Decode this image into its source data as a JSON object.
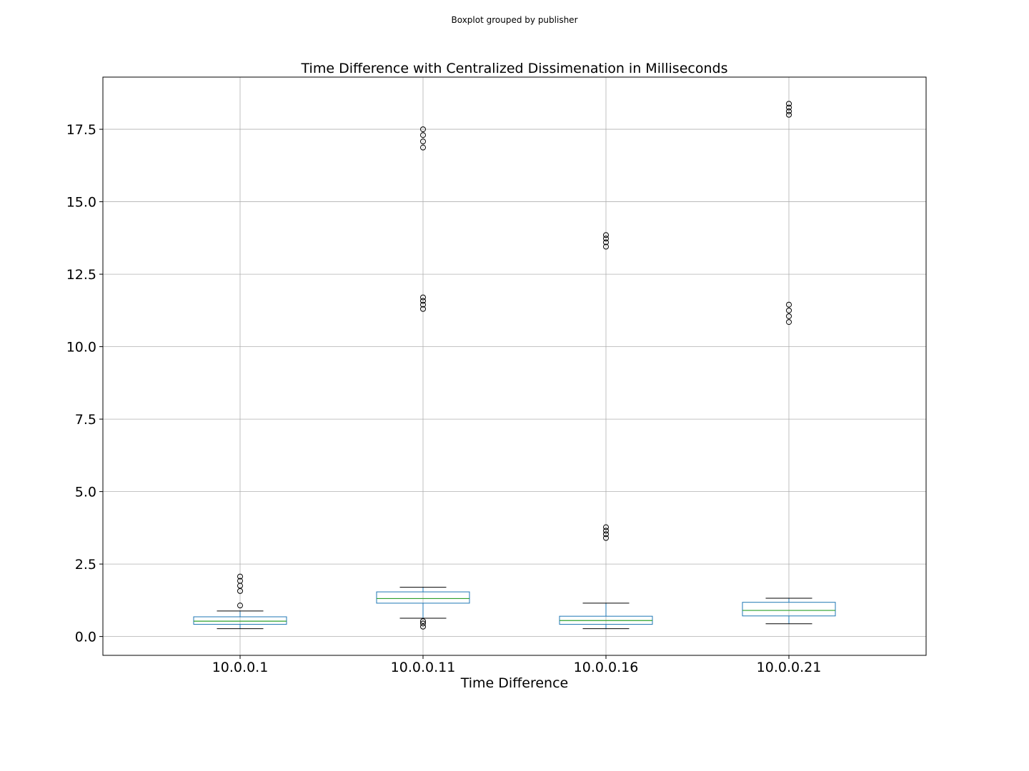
{
  "suptitle": "Boxplot grouped by publisher",
  "chart_data": {
    "type": "boxplot",
    "title": "Time Difference with Centralized Dissimenation in Milliseconds",
    "xlabel": "Time Difference",
    "ylabel": "",
    "ylim": [
      -0.65,
      19.3
    ],
    "yticks": [
      0.0,
      2.5,
      5.0,
      7.5,
      10.0,
      12.5,
      15.0,
      17.5
    ],
    "ytick_labels": [
      "0.0",
      "2.5",
      "5.0",
      "7.5",
      "10.0",
      "12.5",
      "15.0",
      "17.5"
    ],
    "grid": true,
    "categories": [
      "10.0.0.1",
      "10.0.0.11",
      "10.0.0.16",
      "10.0.0.21"
    ],
    "boxes": [
      {
        "whisker_low": 0.27,
        "q1": 0.42,
        "median": 0.53,
        "q3": 0.68,
        "whisker_high": 0.88,
        "outliers": [
          1.07,
          1.57,
          1.75,
          1.92,
          2.07
        ]
      },
      {
        "whisker_low": 0.63,
        "q1": 1.15,
        "median": 1.31,
        "q3": 1.54,
        "whisker_high": 1.7,
        "outliers": [
          0.34,
          0.45,
          0.53,
          11.3,
          11.45,
          11.58,
          11.7,
          16.87,
          17.08,
          17.3,
          17.5
        ]
      },
      {
        "whisker_low": 0.27,
        "q1": 0.42,
        "median": 0.55,
        "q3": 0.7,
        "whisker_high": 1.15,
        "outliers": [
          3.4,
          3.53,
          3.65,
          3.77,
          13.45,
          13.6,
          13.73,
          13.85
        ]
      },
      {
        "whisker_low": 0.44,
        "q1": 0.71,
        "median": 0.9,
        "q3": 1.18,
        "whisker_high": 1.32,
        "outliers": [
          10.85,
          11.05,
          11.25,
          11.45,
          18.0,
          18.12,
          18.25,
          18.38
        ]
      }
    ],
    "colors": {
      "box": "#1f77b4",
      "median": "#2ca02c",
      "whisker": "#000000",
      "grid": "#b0b0b0",
      "outlier": "#000000"
    }
  }
}
